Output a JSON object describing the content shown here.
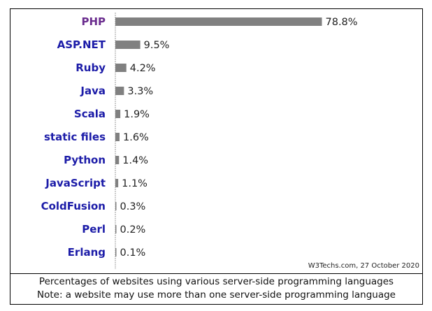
{
  "chart_data": {
    "type": "bar",
    "orientation": "horizontal",
    "categories": [
      "PHP",
      "ASP.NET",
      "Ruby",
      "Java",
      "Scala",
      "static files",
      "Python",
      "JavaScript",
      "ColdFusion",
      "Perl",
      "Erlang"
    ],
    "values": [
      78.8,
      9.5,
      4.2,
      3.3,
      1.9,
      1.6,
      1.4,
      1.1,
      0.3,
      0.2,
      0.1
    ],
    "value_labels": [
      "78.8%",
      "9.5%",
      "4.2%",
      "3.3%",
      "1.9%",
      "1.6%",
      "1.4%",
      "1.1%",
      "0.3%",
      "0.2%",
      "0.1%"
    ],
    "xlim": [
      0,
      100
    ],
    "grid": false,
    "colors": {
      "bar": "#808080",
      "highlight_label": "#6a2c8e",
      "label": "#1c1ca8"
    }
  },
  "source_note": "W3Techs.com, 27 October 2020",
  "caption": {
    "line1": "Percentages of websites using various server-side programming languages",
    "line2": "Note: a website may use more than one server-side programming language"
  }
}
